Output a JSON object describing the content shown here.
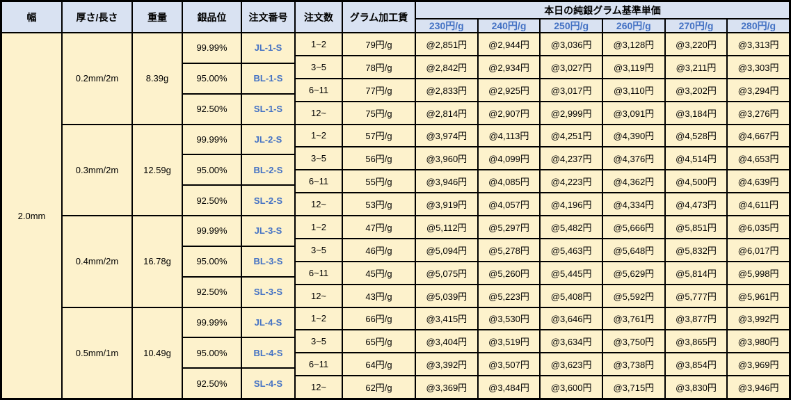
{
  "table": {
    "headers": {
      "width": "幅",
      "thickness_length": "厚さ/長さ",
      "weight": "重量",
      "purity": "銀品位",
      "order_no": "注文番号",
      "order_qty": "注文数",
      "gram_fee": "グラム加工賃",
      "price_group": "本日の純銀グラム基準単価",
      "price_cols": [
        "230円/g",
        "240円/g",
        "250円/g",
        "260円/g",
        "270円/g",
        "280円/g"
      ]
    },
    "width_value": "2.0mm",
    "blocks": [
      {
        "thickness_length": "0.2mm/2m",
        "weight": "8.39g",
        "purities": [
          {
            "purity": "99.99%",
            "order_no": "JL-1-S"
          },
          {
            "purity": "95.00%",
            "order_no": "BL-1-S"
          },
          {
            "purity": "92.50%",
            "order_no": "SL-1-S"
          }
        ],
        "qty_rows": [
          {
            "qty": "1~2",
            "fee": "79円/g",
            "prices": [
              "@2,851円",
              "@2,944円",
              "@3,036円",
              "@3,128円",
              "@3,220円",
              "@3,313円"
            ]
          },
          {
            "qty": "3~5",
            "fee": "78円/g",
            "prices": [
              "@2,842円",
              "@2,934円",
              "@3,027円",
              "@3,119円",
              "@3,211円",
              "@3,303円"
            ]
          },
          {
            "qty": "6~11",
            "fee": "77円/g",
            "prices": [
              "@2,833円",
              "@2,925円",
              "@3,017円",
              "@3,110円",
              "@3,202円",
              "@3,294円"
            ]
          },
          {
            "qty": "12~",
            "fee": "75円/g",
            "prices": [
              "@2,814円",
              "@2,907円",
              "@2,999円",
              "@3,091円",
              "@3,184円",
              "@3,276円"
            ]
          }
        ]
      },
      {
        "thickness_length": "0.3mm/2m",
        "weight": "12.59g",
        "purities": [
          {
            "purity": "99.99%",
            "order_no": "JL-2-S"
          },
          {
            "purity": "95.00%",
            "order_no": "BL-2-S"
          },
          {
            "purity": "92.50%",
            "order_no": "SL-2-S"
          }
        ],
        "qty_rows": [
          {
            "qty": "1~2",
            "fee": "57円/g",
            "prices": [
              "@3,974円",
              "@4,113円",
              "@4,251円",
              "@4,390円",
              "@4,528円",
              "@4,667円"
            ]
          },
          {
            "qty": "3~5",
            "fee": "56円/g",
            "prices": [
              "@3,960円",
              "@4,099円",
              "@4,237円",
              "@4,376円",
              "@4,514円",
              "@4,653円"
            ]
          },
          {
            "qty": "6~11",
            "fee": "55円/g",
            "prices": [
              "@3,946円",
              "@4,085円",
              "@4,223円",
              "@4,362円",
              "@4,500円",
              "@4,639円"
            ]
          },
          {
            "qty": "12~",
            "fee": "53円/g",
            "prices": [
              "@3,919円",
              "@4,057円",
              "@4,196円",
              "@4,334円",
              "@4,473円",
              "@4,611円"
            ]
          }
        ]
      },
      {
        "thickness_length": "0.4mm/2m",
        "weight": "16.78g",
        "purities": [
          {
            "purity": "99.99%",
            "order_no": "JL-3-S"
          },
          {
            "purity": "95.00%",
            "order_no": "BL-3-S"
          },
          {
            "purity": "92.50%",
            "order_no": "SL-3-S"
          }
        ],
        "qty_rows": [
          {
            "qty": "1~2",
            "fee": "47円/g",
            "prices": [
              "@5,112円",
              "@5,297円",
              "@5,482円",
              "@5,666円",
              "@5,851円",
              "@6,035円"
            ]
          },
          {
            "qty": "3~5",
            "fee": "46円/g",
            "prices": [
              "@5,094円",
              "@5,278円",
              "@5,463円",
              "@5,648円",
              "@5,832円",
              "@6,017円"
            ]
          },
          {
            "qty": "6~11",
            "fee": "45円/g",
            "prices": [
              "@5,075円",
              "@5,260円",
              "@5,445円",
              "@5,629円",
              "@5,814円",
              "@5,998円"
            ]
          },
          {
            "qty": "12~",
            "fee": "43円/g",
            "prices": [
              "@5,039円",
              "@5,223円",
              "@5,408円",
              "@5,592円",
              "@5,777円",
              "@5,961円"
            ]
          }
        ]
      },
      {
        "thickness_length": "0.5mm/1m",
        "weight": "10.49g",
        "purities": [
          {
            "purity": "99.99%",
            "order_no": "JL-4-S"
          },
          {
            "purity": "95.00%",
            "order_no": "BL-4-S"
          },
          {
            "purity": "92.50%",
            "order_no": "SL-4-S"
          }
        ],
        "qty_rows": [
          {
            "qty": "1~2",
            "fee": "66円/g",
            "prices": [
              "@3,415円",
              "@3,530円",
              "@3,646円",
              "@3,761円",
              "@3,877円",
              "@3,992円"
            ]
          },
          {
            "qty": "3~5",
            "fee": "65円/g",
            "prices": [
              "@3,404円",
              "@3,519円",
              "@3,634円",
              "@3,750円",
              "@3,865円",
              "@3,980円"
            ]
          },
          {
            "qty": "6~11",
            "fee": "64円/g",
            "prices": [
              "@3,392円",
              "@3,507円",
              "@3,623円",
              "@3,738円",
              "@3,854円",
              "@3,969円"
            ]
          },
          {
            "qty": "12~",
            "fee": "62円/g",
            "prices": [
              "@3,369円",
              "@3,484円",
              "@3,600円",
              "@3,715円",
              "@3,830円",
              "@3,946円"
            ]
          }
        ]
      }
    ]
  },
  "colors": {
    "header_bg": "#D9E2F2",
    "body_bg": "#FDF2CC",
    "accent_blue": "#4472C4",
    "border": "#000000"
  }
}
